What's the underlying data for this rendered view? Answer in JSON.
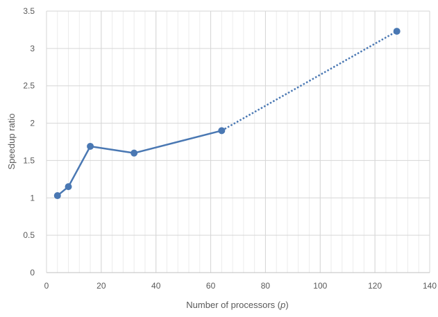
{
  "chart_data": {
    "type": "scatter",
    "title": "",
    "xlabel": "Number of processors (p)",
    "xlabel_parts": {
      "prefix": "Number of processors (",
      "var": "p",
      "suffix": ")"
    },
    "ylabel": "Speedup ratio",
    "xlim": [
      0,
      140
    ],
    "ylim": [
      0,
      3.5
    ],
    "x_ticks": [
      "0",
      "20",
      "40",
      "60",
      "80",
      "100",
      "120",
      "140"
    ],
    "y_ticks": [
      "0",
      "0.5",
      "1",
      "1.5",
      "2",
      "2.5",
      "3",
      "3.5"
    ],
    "grid": {
      "major": true,
      "minor_vertical": true
    },
    "legend": "none",
    "series": [
      {
        "line": "solid",
        "color": "#4a78b3",
        "x": [
          4,
          8,
          16,
          32,
          64
        ],
        "y": [
          1.03,
          1.15,
          1.69,
          1.6,
          1.9
        ]
      },
      {
        "line": "dotted",
        "color": "#4a78b3",
        "x": [
          64,
          128
        ],
        "y": [
          1.9,
          3.23
        ]
      }
    ]
  }
}
